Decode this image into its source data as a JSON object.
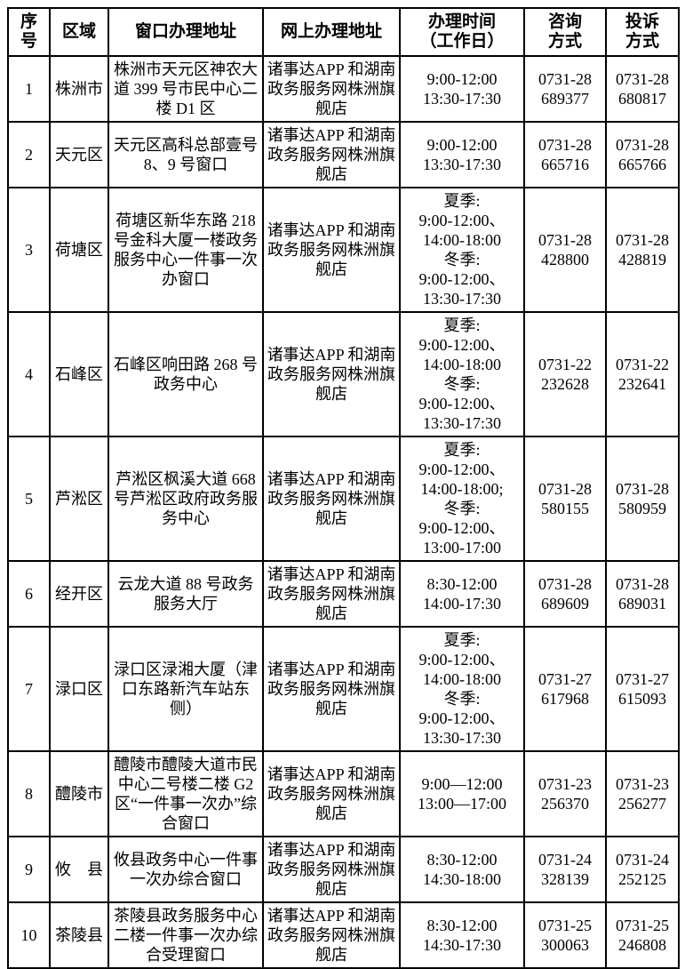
{
  "table": {
    "headers": {
      "no": "序\n号",
      "region": "区域",
      "address": "窗口办理地址",
      "online": "网上办理地址",
      "hours": "办理时间\n（工作日）",
      "consult": "咨询\n方式",
      "complain": "投诉\n方式"
    },
    "rows": [
      {
        "no": "1",
        "region": "株洲市",
        "address": "株洲市天元区神农大道 399 号市民中心二楼 D1 区",
        "online": "诸事达APP 和湖南政务服务网株洲旗舰店",
        "hours": "9:00-12:00\n13:30-17:30",
        "consult": "0731-28\n689377",
        "complain": "0731-28\n680817"
      },
      {
        "no": "2",
        "region": "天元区",
        "address": "天元区高科总部壹号 8、9 号窗口",
        "online": "诸事达APP 和湖南政务服务网株洲旗舰店",
        "hours": "9:00-12:00\n13:30-17:30",
        "consult": "0731-28\n665716",
        "complain": "0731-28\n665766"
      },
      {
        "no": "3",
        "region": "荷塘区",
        "address": "荷塘区新华东路 218 号金科大厦一楼政务服务中心一件事一次办窗口",
        "online": "诸事达APP 和湖南政务服务网株洲旗舰店",
        "hours": "夏季:\n9:00-12:00、\n14:00-18:00\n冬季:\n9:00-12:00、\n13:30-17:30",
        "consult": "0731-28\n428800",
        "complain": "0731-28\n428819"
      },
      {
        "no": "4",
        "region": "石峰区",
        "address": "石峰区响田路 268 号政务中心",
        "online": "诸事达APP 和湖南政务服务网株洲旗舰店",
        "hours": "夏季:\n9:00-12:00、\n14:00-18:00\n冬季:\n9:00-12:00、\n13:30-17:30",
        "consult": "0731-22\n232628",
        "complain": "0731-22\n232641"
      },
      {
        "no": "5",
        "region": "芦淞区",
        "address": "芦淞区枫溪大道 668 号芦淞区政府政务服务中心",
        "online": "诸事达APP 和湖南政务服务网株洲旗舰店",
        "hours": "夏季:\n9:00-12:00、\n14:00-18:00;\n冬季:\n9:00-12:00、\n13:00-17:00",
        "consult": "0731-28\n580155",
        "complain": "0731-28\n580959"
      },
      {
        "no": "6",
        "region": "经开区",
        "address": "云龙大道 88 号政务服务大厅",
        "online": "诸事达APP 和湖南政务服务网株洲旗舰店",
        "hours": "8:30-12:00\n14:00-17:30",
        "consult": "0731-28\n689609",
        "complain": "0731-28\n689031"
      },
      {
        "no": "7",
        "region": "渌口区",
        "address": "渌口区渌湘大厦（津口东路新汽车站东侧）",
        "online": "诸事达APP 和湖南政务服务网株洲旗舰店",
        "hours": "夏季:\n9:00-12:00、\n14:00-18:00\n冬季:\n9:00-12:00、\n13:30-17:30",
        "consult": "0731-27\n617968",
        "complain": "0731-27\n615093"
      },
      {
        "no": "8",
        "region": "醴陵市",
        "address": "醴陵市醴陵大道市民中心二号楼二楼 G2 区“一件事一次办”综合窗口",
        "online": "诸事达APP 和湖南政务服务网株洲旗舰店",
        "hours": "9:00—12:00\n13:00—17:00",
        "consult": "0731-23\n256370",
        "complain": "0731-23\n256277"
      },
      {
        "no": "9",
        "region": "攸　县",
        "address": "攸县政务中心一件事一次办综合窗口",
        "online": "诸事达APP 和湖南政务服务网株洲旗舰店",
        "hours": "8:30-12:00\n14:30-18:00",
        "consult": "0731-24\n328139",
        "complain": "0731-24\n252125"
      },
      {
        "no": "10",
        "region": "茶陵县",
        "address": "茶陵县政务服务中心二楼一件事一次办综合受理窗口",
        "online": "诸事达APP 和湖南政务服务网株洲旗舰店",
        "hours": "8:30-12:00\n14:30-17:30",
        "consult": "0731-25\n300063",
        "complain": "0731-25\n246808"
      }
    ]
  }
}
